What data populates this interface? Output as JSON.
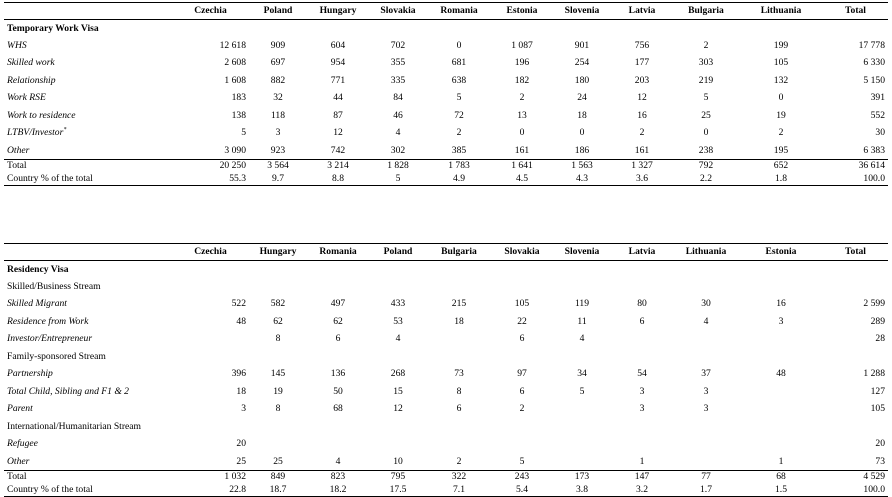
{
  "table1": {
    "columns": [
      "",
      "Czechia",
      "Poland",
      "Hungary",
      "Slovakia",
      "Romania",
      "Estonia",
      "Slovenia",
      "Latvia",
      "Bulgaria",
      "Lithuania",
      "Total"
    ],
    "section_title": "Temporary Work Visa",
    "rows": [
      {
        "label": "WHS",
        "italic": true,
        "values": [
          "12 618",
          "909",
          "604",
          "702",
          "0",
          "1 087",
          "901",
          "756",
          "2",
          "199",
          "17 778"
        ]
      },
      {
        "label": "Skilled work",
        "italic": true,
        "values": [
          "2 608",
          "697",
          "954",
          "355",
          "681",
          "196",
          "254",
          "177",
          "303",
          "105",
          "6 330"
        ]
      },
      {
        "label": "Relationship",
        "italic": true,
        "values": [
          "1 608",
          "882",
          "771",
          "335",
          "638",
          "182",
          "180",
          "203",
          "219",
          "132",
          "5 150"
        ]
      },
      {
        "label": "Work RSE",
        "italic": true,
        "values": [
          "183",
          "32",
          "44",
          "84",
          "5",
          "2",
          "24",
          "12",
          "5",
          "0",
          "391"
        ]
      },
      {
        "label": "Work to residence",
        "italic": true,
        "values": [
          "138",
          "118",
          "87",
          "46",
          "72",
          "13",
          "18",
          "16",
          "25",
          "19",
          "552"
        ]
      },
      {
        "label": "LTBV/Investor",
        "sup": "*",
        "italic": true,
        "values": [
          "5",
          "3",
          "12",
          "4",
          "2",
          "0",
          "0",
          "2",
          "0",
          "2",
          "30"
        ]
      },
      {
        "label": "Other",
        "italic": true,
        "values": [
          "3 090",
          "923",
          "742",
          "302",
          "385",
          "161",
          "186",
          "161",
          "238",
          "195",
          "6 383"
        ]
      },
      {
        "label": "Total",
        "italic": false,
        "values": [
          "20 250",
          "3 564",
          "3 214",
          "1 828",
          "1 783",
          "1 641",
          "1 563",
          "1 327",
          "792",
          "652",
          "36 614"
        ]
      },
      {
        "label": "Country % of the total",
        "italic": false,
        "values": [
          "55.3",
          "9.7",
          "8.8",
          "5",
          "4.9",
          "4.5",
          "4.3",
          "3.6",
          "2.2",
          "1.8",
          "100.0"
        ]
      }
    ]
  },
  "table2": {
    "columns": [
      "",
      "Czechia",
      "Hungary",
      "Romania",
      "Poland",
      "Bulgaria",
      "Slovakia",
      "Slovenia",
      "Latvia",
      "Lithuania",
      "Estonia",
      "Total"
    ],
    "section_title": "Residency Visa",
    "rows": [
      {
        "type": "stream",
        "label": "Skilled/Business Stream"
      },
      {
        "label": "Skilled Migrant",
        "italic": true,
        "values": [
          "522",
          "582",
          "497",
          "433",
          "215",
          "105",
          "119",
          "80",
          "30",
          "16",
          "2 599"
        ]
      },
      {
        "label": "Residence from Work",
        "italic": true,
        "values": [
          "48",
          "62",
          "62",
          "53",
          "18",
          "22",
          "11",
          "6",
          "4",
          "3",
          "289"
        ]
      },
      {
        "label": "Investor/Entrepreneur",
        "italic": true,
        "values": [
          "",
          "8",
          "6",
          "4",
          "",
          "6",
          "4",
          "",
          "",
          "",
          "28"
        ]
      },
      {
        "type": "stream",
        "label": "Family-sponsored Stream"
      },
      {
        "label": "Partnership",
        "italic": true,
        "values": [
          "396",
          "145",
          "136",
          "268",
          "73",
          "97",
          "34",
          "54",
          "37",
          "48",
          "1 288"
        ]
      },
      {
        "label": "Total Child, Sibling and F1 & 2",
        "italic": true,
        "values": [
          "18",
          "19",
          "50",
          "15",
          "8",
          "6",
          "5",
          "3",
          "3",
          "",
          "127"
        ]
      },
      {
        "label": "Parent",
        "italic": true,
        "values": [
          "3",
          "8",
          "68",
          "12",
          "6",
          "2",
          "",
          "3",
          "3",
          "",
          "105"
        ]
      },
      {
        "type": "stream",
        "label": "International/Humanitarian Stream"
      },
      {
        "label": "Refugee",
        "italic": true,
        "values": [
          "20",
          "",
          "",
          "",
          "",
          "",
          "",
          "",
          "",
          "",
          "20"
        ]
      },
      {
        "label": "Other",
        "italic": true,
        "values": [
          "25",
          "25",
          "4",
          "10",
          "2",
          "5",
          "",
          "1",
          "",
          "1",
          "73"
        ]
      },
      {
        "label": "Total",
        "italic": false,
        "values": [
          "1 032",
          "849",
          "823",
          "795",
          "322",
          "243",
          "173",
          "147",
          "77",
          "68",
          "4 529"
        ]
      },
      {
        "label": "Country % of the total",
        "italic": false,
        "values": [
          "22.8",
          "18.7",
          "18.2",
          "17.5",
          "7.1",
          "5.4",
          "3.8",
          "3.2",
          "1.7",
          "1.5",
          "100.0"
        ]
      }
    ]
  }
}
